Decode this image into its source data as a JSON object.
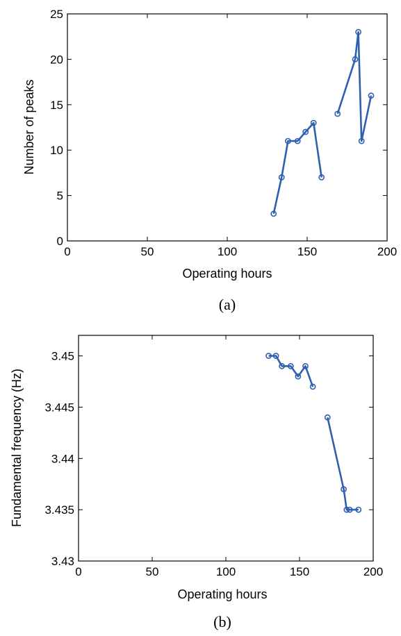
{
  "chart_data": [
    {
      "type": "line",
      "caption": "(a)",
      "xlabel": "Operating hours",
      "ylabel": "Number of peaks",
      "xlim": [
        0,
        200
      ],
      "ylim": [
        0,
        25
      ],
      "xticks": [
        "0",
        "50",
        "100",
        "150",
        "200"
      ],
      "yticks": [
        "0",
        "5",
        "10",
        "15",
        "20",
        "25"
      ],
      "grid": false,
      "marker": "circle",
      "series": [
        {
          "color": "#2f5fb0",
          "segments": [
            [
              [
                129,
                3
              ],
              [
                134,
                7
              ],
              [
                138,
                11
              ],
              [
                144,
                11
              ],
              [
                149,
                12
              ],
              [
                154,
                13
              ],
              [
                159,
                7
              ]
            ],
            [
              [
                169,
                14
              ],
              [
                180,
                20
              ],
              [
                182,
                23
              ],
              [
                184,
                11
              ],
              [
                190,
                16
              ]
            ]
          ]
        }
      ]
    },
    {
      "type": "line",
      "caption": "(b)",
      "xlabel": "Operating hours",
      "ylabel": "Fundamental frequency (Hz)",
      "xlim": [
        0,
        200
      ],
      "ylim": [
        3.43,
        3.452
      ],
      "xticks": [
        "0",
        "50",
        "100",
        "150",
        "200"
      ],
      "yticks": [
        "3.43",
        "3.435",
        "3.44",
        "3.445",
        "3.45"
      ],
      "grid": false,
      "marker": "circle",
      "series": [
        {
          "color": "#2f5fb0",
          "segments": [
            [
              [
                129,
                3.45
              ],
              [
                134,
                3.45
              ],
              [
                138,
                3.449
              ],
              [
                144,
                3.449
              ],
              [
                149,
                3.448
              ],
              [
                154,
                3.449
              ],
              [
                159,
                3.447
              ]
            ],
            [
              [
                169,
                3.444
              ],
              [
                180,
                3.437
              ],
              [
                182,
                3.435
              ],
              [
                184,
                3.435
              ],
              [
                190,
                3.435
              ]
            ]
          ]
        }
      ]
    }
  ]
}
